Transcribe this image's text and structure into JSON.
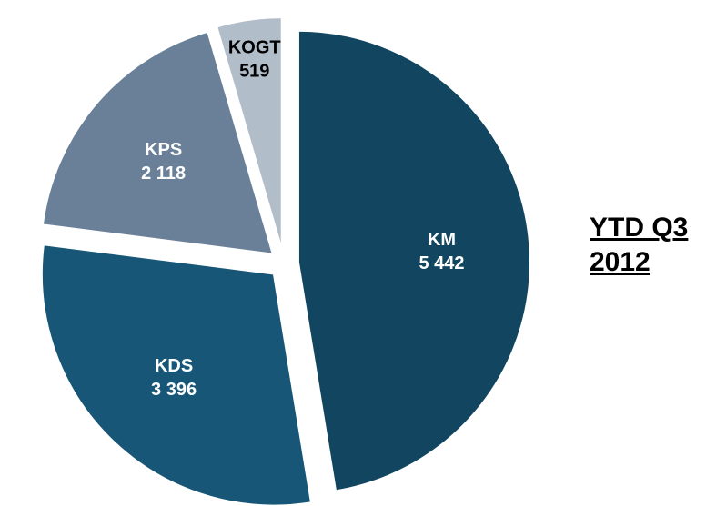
{
  "chart_data": {
    "type": "pie",
    "title": "YTD Q3 2012",
    "categories": [
      "KM",
      "KDS",
      "KPS",
      "KOGT"
    ],
    "values": [
      5442,
      3396,
      2118,
      519
    ],
    "value_labels": [
      "5 442",
      "3 396",
      "2 118",
      "519"
    ],
    "colors": [
      "#12455f",
      "#175676",
      "#6a8099",
      "#b1bdc9"
    ],
    "label_colors": [
      "#ffffff",
      "#ffffff",
      "#ffffff",
      "#000000"
    ]
  }
}
